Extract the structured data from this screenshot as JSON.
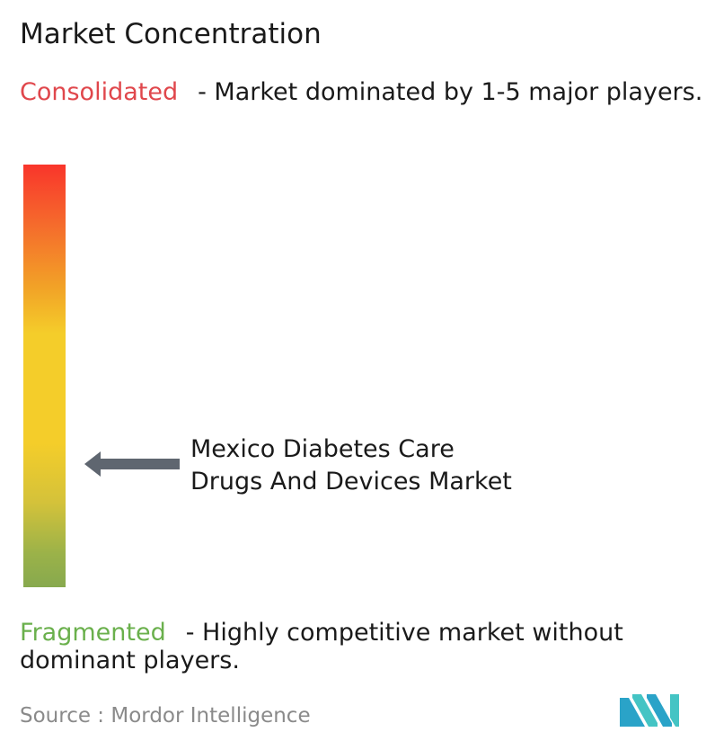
{
  "title": "Market Concentration",
  "consolidated": {
    "label": "Consolidated",
    "description": "- Market dominated by 1-5 major players.",
    "color": "#e0474c"
  },
  "fragmented": {
    "label": "Fragmented",
    "description": "- Highly competitive market without dominant players.",
    "color": "#6ab04c"
  },
  "market": {
    "line1": "Mexico Diabetes Care",
    "line2": "Drugs And Devices Market"
  },
  "source": {
    "text": "Source :  Mordor Intelligence"
  },
  "icons": {
    "arrow": "left-arrow-icon",
    "logo": "mordor-intelligence-logo"
  },
  "colors": {
    "gradient_top": "#f9352b",
    "gradient_middle": "#f4cd2a",
    "gradient_bottom": "#87a94e",
    "arrow": "#5f6670",
    "logo_blue": "#2aa3c8",
    "logo_teal": "#44c4c4"
  }
}
